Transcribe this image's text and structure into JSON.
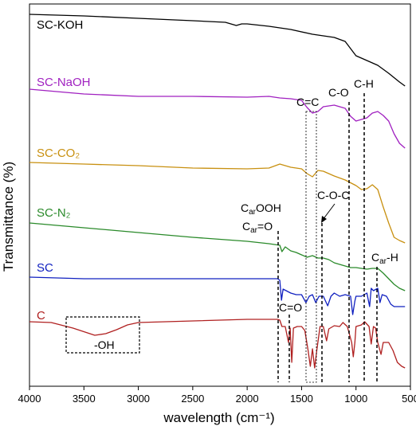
{
  "chart_data": {
    "type": "line",
    "title": "",
    "xlabel": "wavelength (cm⁻¹)",
    "ylabel": "Transmittance (%)",
    "xlim": [
      4000,
      500
    ],
    "x_ticks": [
      4000,
      3500,
      3000,
      2500,
      2000,
      1500,
      1000,
      500
    ],
    "x_tick_labels": [
      "4000",
      "3500",
      "3000",
      "2500",
      "2000",
      "1500",
      "1000",
      "500"
    ],
    "y_ticks_shown": false,
    "grid": false,
    "legend": "none",
    "series": [
      {
        "name": "SC-KOH",
        "color": "#000000",
        "points": [
          [
            4000,
            18
          ],
          [
            3500,
            20
          ],
          [
            3000,
            23
          ],
          [
            2500,
            26
          ],
          [
            2200,
            28
          ],
          [
            2100,
            32
          ],
          [
            2050,
            30
          ],
          [
            2000,
            30
          ],
          [
            1800,
            33
          ],
          [
            1600,
            37
          ],
          [
            1400,
            43
          ],
          [
            1200,
            47
          ],
          [
            1100,
            52
          ],
          [
            1000,
            70
          ],
          [
            900,
            76
          ],
          [
            800,
            82
          ],
          [
            700,
            92
          ],
          [
            600,
            103
          ],
          [
            550,
            108
          ]
        ]
      },
      {
        "name": "SC-NaOH",
        "color": "#a020c0",
        "points": [
          [
            4000,
            112
          ],
          [
            3500,
            118
          ],
          [
            3000,
            121
          ],
          [
            2500,
            121
          ],
          [
            2000,
            122
          ],
          [
            1800,
            121
          ],
          [
            1700,
            123
          ],
          [
            1600,
            124
          ],
          [
            1500,
            126
          ],
          [
            1450,
            135
          ],
          [
            1400,
            142
          ],
          [
            1350,
            140
          ],
          [
            1300,
            134
          ],
          [
            1200,
            132
          ],
          [
            1100,
            136
          ],
          [
            1050,
            146
          ],
          [
            1000,
            152
          ],
          [
            950,
            150
          ],
          [
            900,
            148
          ],
          [
            850,
            142
          ],
          [
            800,
            140
          ],
          [
            750,
            145
          ],
          [
            700,
            152
          ],
          [
            650,
            168
          ],
          [
            600,
            180
          ],
          [
            550,
            186
          ]
        ]
      },
      {
        "name": "SC-CO₂",
        "color": "#c89010",
        "points": [
          [
            4000,
            204
          ],
          [
            3500,
            206
          ],
          [
            3000,
            208
          ],
          [
            2500,
            211
          ],
          [
            2000,
            212
          ],
          [
            1800,
            211
          ],
          [
            1700,
            206
          ],
          [
            1600,
            210
          ],
          [
            1500,
            212
          ],
          [
            1450,
            218
          ],
          [
            1400,
            222
          ],
          [
            1350,
            214
          ],
          [
            1300,
            215
          ],
          [
            1200,
            221
          ],
          [
            1100,
            226
          ],
          [
            1000,
            233
          ],
          [
            950,
            238
          ],
          [
            900,
            237
          ],
          [
            850,
            232
          ],
          [
            800,
            238
          ],
          [
            750,
            260
          ],
          [
            700,
            280
          ],
          [
            650,
            298
          ],
          [
            600,
            302
          ],
          [
            550,
            305
          ]
        ]
      },
      {
        "name": "SC-N₂",
        "color": "#2a8a2a",
        "points": [
          [
            4000,
            280
          ],
          [
            3500,
            286
          ],
          [
            3000,
            292
          ],
          [
            2500,
            298
          ],
          [
            2000,
            303
          ],
          [
            1800,
            306
          ],
          [
            1700,
            308
          ],
          [
            1680,
            316
          ],
          [
            1650,
            310
          ],
          [
            1600,
            315
          ],
          [
            1550,
            317
          ],
          [
            1500,
            320
          ],
          [
            1450,
            323
          ],
          [
            1400,
            321
          ],
          [
            1350,
            324
          ],
          [
            1300,
            324
          ],
          [
            1250,
            326
          ],
          [
            1200,
            330
          ],
          [
            1150,
            332
          ],
          [
            1100,
            334
          ],
          [
            1050,
            336
          ],
          [
            1000,
            336
          ],
          [
            950,
            337
          ],
          [
            900,
            338
          ],
          [
            850,
            337
          ],
          [
            800,
            337
          ],
          [
            750,
            343
          ],
          [
            700,
            350
          ],
          [
            650,
            357
          ],
          [
            600,
            362
          ],
          [
            550,
            365
          ]
        ]
      },
      {
        "name": "SC",
        "color": "#1020c0",
        "points": [
          [
            4000,
            348
          ],
          [
            3500,
            350
          ],
          [
            3000,
            350
          ],
          [
            2500,
            350
          ],
          [
            2000,
            350
          ],
          [
            1800,
            350
          ],
          [
            1720,
            350
          ],
          [
            1700,
            352
          ],
          [
            1685,
            377
          ],
          [
            1670,
            363
          ],
          [
            1600,
            368
          ],
          [
            1550,
            370
          ],
          [
            1500,
            370
          ],
          [
            1460,
            380
          ],
          [
            1430,
            372
          ],
          [
            1400,
            370
          ],
          [
            1370,
            380
          ],
          [
            1340,
            372
          ],
          [
            1300,
            372
          ],
          [
            1260,
            384
          ],
          [
            1230,
            372
          ],
          [
            1200,
            368
          ],
          [
            1150,
            372
          ],
          [
            1100,
            370
          ],
          [
            1050,
            372
          ],
          [
            1030,
            395
          ],
          [
            1010,
            378
          ],
          [
            1000,
            372
          ],
          [
            950,
            372
          ],
          [
            900,
            368
          ],
          [
            875,
            385
          ],
          [
            860,
            362
          ],
          [
            840,
            365
          ],
          [
            800,
            362
          ],
          [
            780,
            380
          ],
          [
            760,
            370
          ],
          [
            720,
            372
          ],
          [
            680,
            382
          ],
          [
            650,
            385
          ],
          [
            600,
            385
          ],
          [
            550,
            385
          ]
        ]
      },
      {
        "name": "C",
        "color": "#b02020",
        "points": [
          [
            4000,
            404
          ],
          [
            3800,
            405
          ],
          [
            3600,
            412
          ],
          [
            3400,
            421
          ],
          [
            3300,
            419
          ],
          [
            3200,
            414
          ],
          [
            3100,
            408
          ],
          [
            3000,
            405
          ],
          [
            2500,
            403
          ],
          [
            2000,
            401
          ],
          [
            1800,
            401
          ],
          [
            1720,
            401
          ],
          [
            1700,
            402
          ],
          [
            1680,
            410
          ],
          [
            1650,
            410
          ],
          [
            1620,
            430
          ],
          [
            1605,
            412
          ],
          [
            1590,
            455
          ],
          [
            1575,
            412
          ],
          [
            1540,
            410
          ],
          [
            1500,
            410
          ],
          [
            1470,
            415
          ],
          [
            1440,
            440
          ],
          [
            1420,
            460
          ],
          [
            1400,
            438
          ],
          [
            1380,
            462
          ],
          [
            1360,
            440
          ],
          [
            1330,
            410
          ],
          [
            1300,
            410
          ],
          [
            1270,
            428
          ],
          [
            1250,
            413
          ],
          [
            1200,
            409
          ],
          [
            1150,
            410
          ],
          [
            1120,
            405
          ],
          [
            1080,
            410
          ],
          [
            1040,
            430
          ],
          [
            1025,
            448
          ],
          [
            1010,
            430
          ],
          [
            1000,
            410
          ],
          [
            950,
            408
          ],
          [
            920,
            404
          ],
          [
            880,
            410
          ],
          [
            860,
            432
          ],
          [
            840,
            410
          ],
          [
            820,
            412
          ],
          [
            800,
            430
          ],
          [
            770,
            445
          ],
          [
            750,
            430
          ],
          [
            700,
            430
          ],
          [
            660,
            440
          ],
          [
            620,
            455
          ],
          [
            580,
            460
          ],
          [
            550,
            462
          ]
        ]
      }
    ],
    "series_labels": [
      "SC-KOH",
      "SC-NaOH",
      "SC-CO₂",
      "SC-N₂",
      "SC",
      "C"
    ],
    "annotations": [
      {
        "text": "C=C",
        "x": 1390
      },
      {
        "text": "C-O",
        "x": 1030
      },
      {
        "text": "C-H",
        "x": 870
      },
      {
        "text": "C-O-C",
        "x": 1250
      },
      {
        "text": "CarOOH",
        "x": 1680
      },
      {
        "text": "Car=O",
        "x": 1680
      },
      {
        "text": "Car-H",
        "x": 760
      },
      {
        "text": "C=O",
        "x": 1600
      },
      {
        "text": "-OH",
        "x": 3350
      }
    ]
  },
  "annotations_text": {
    "cc": "C=C",
    "co": "C-O",
    "ch": "C-H",
    "coc": "C-O-C",
    "carooh_main": "C",
    "carooh_sub": "ar",
    "carooh_rest": "OOH",
    "caro_main": "C",
    "caro_sub": "ar",
    "caro_rest": "=O",
    "carh_main": "C",
    "carh_sub": "ar",
    "carh_rest": "-H",
    "c_eq_o": "C=O",
    "oh": "-OH"
  }
}
